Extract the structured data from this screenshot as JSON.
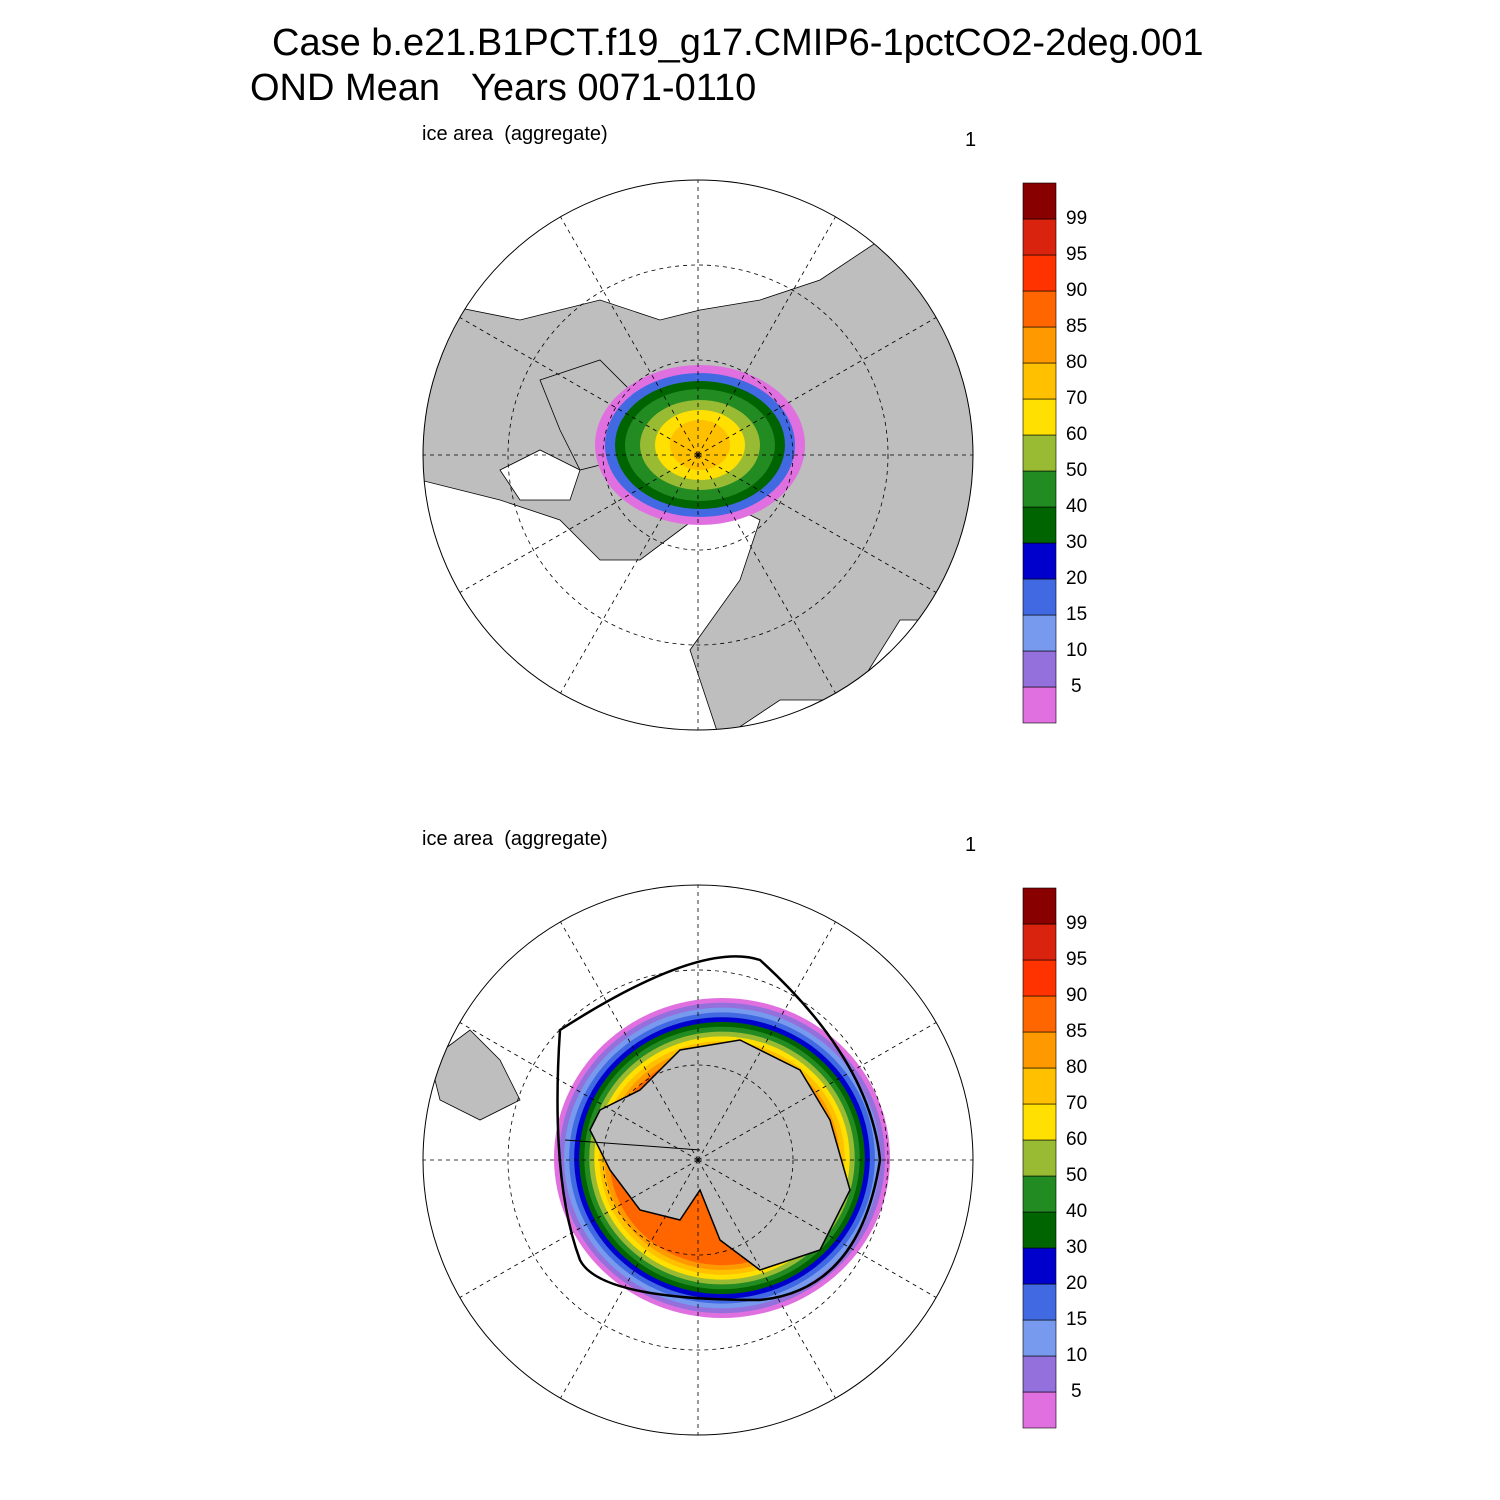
{
  "header": {
    "title": "Case b.e21.B1PCT.f19_g17.CMIP6-1pctCO2-2deg.001",
    "subtitle": "OND Mean   Years 0071-0110"
  },
  "panels": [
    {
      "label": "ice area  (aggregate)",
      "units": "1",
      "colorbar": {
        "levels": [
          5,
          10,
          15,
          20,
          30,
          40,
          50,
          60,
          70,
          80,
          85,
          90,
          95,
          99
        ],
        "colors": [
          "#e070e0",
          "#9370db",
          "#7799ee",
          "#4169e1",
          "#0000cd",
          "#006400",
          "#228b22",
          "#99bb33",
          "#ffe000",
          "#ffc000",
          "#ff9900",
          "#ff6600",
          "#ff3300",
          "#d9230f",
          "#880000"
        ]
      }
    },
    {
      "label": "ice area  (aggregate)",
      "units": "1",
      "colorbar": {
        "levels": [
          5,
          10,
          15,
          20,
          30,
          40,
          50,
          60,
          70,
          80,
          85,
          90,
          95,
          99
        ],
        "colors": [
          "#e070e0",
          "#9370db",
          "#7799ee",
          "#4169e1",
          "#0000cd",
          "#006400",
          "#228b22",
          "#99bb33",
          "#ffe000",
          "#ffc000",
          "#ff9900",
          "#ff6600",
          "#ff3300",
          "#d9230f",
          "#880000"
        ]
      }
    }
  ]
}
